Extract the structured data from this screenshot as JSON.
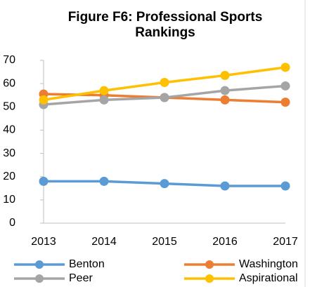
{
  "chart_data": {
    "type": "line",
    "title": "Figure F6: Professional Sports Rankings",
    "categories": [
      "2013",
      "2014",
      "2015",
      "2016",
      "2017"
    ],
    "series": [
      {
        "name": "Benton",
        "color": "#5b9bd5",
        "values": [
          18,
          18,
          17,
          16,
          16
        ]
      },
      {
        "name": "Washington",
        "color": "#ed7d31",
        "values": [
          55.5,
          55,
          54,
          53,
          52
        ]
      },
      {
        "name": "Peer",
        "color": "#a5a5a5",
        "values": [
          51,
          53,
          54,
          57,
          59
        ]
      },
      {
        "name": "Aspirational",
        "color": "#ffc000",
        "values": [
          53,
          57,
          60.5,
          63.5,
          67
        ]
      }
    ],
    "ylim": [
      0,
      70
    ],
    "yticks": [
      0,
      10,
      20,
      30,
      40,
      50,
      60,
      70
    ],
    "grid": false,
    "legend": "bottom"
  }
}
